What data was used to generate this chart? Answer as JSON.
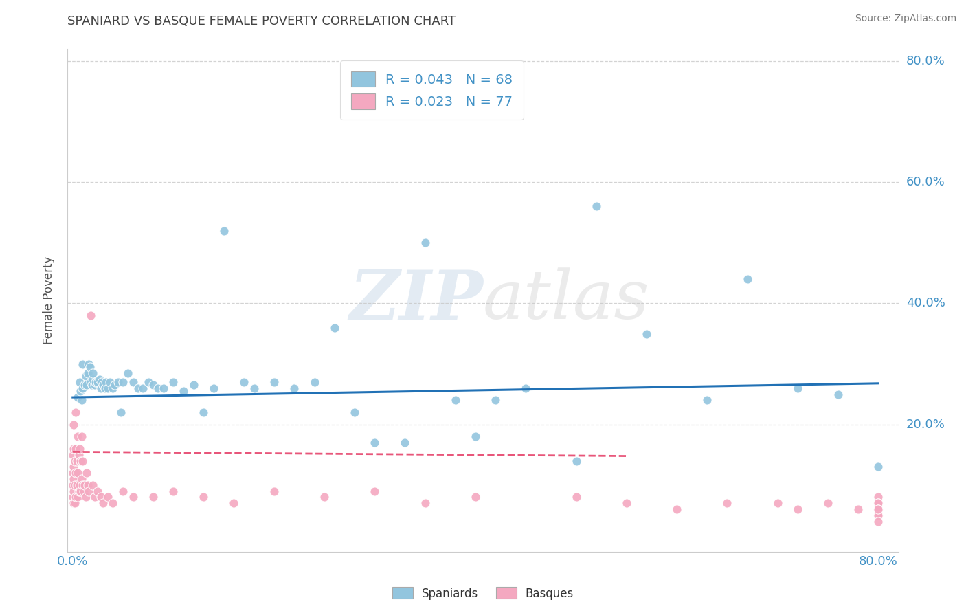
{
  "title": "SPANIARD VS BASQUE FEMALE POVERTY CORRELATION CHART",
  "source": "Source: ZipAtlas.com",
  "ylabel_label": "Female Poverty",
  "legend_label1": "Spaniards",
  "legend_label2": "Basques",
  "r1": "0.043",
  "n1": "68",
  "r2": "0.023",
  "n2": "77",
  "color_blue": "#92c5de",
  "color_pink": "#f4a8c0",
  "trend_blue": "#2171b5",
  "trend_pink": "#e8567a",
  "xlim": [
    -0.005,
    0.82
  ],
  "ylim": [
    -0.01,
    0.82
  ],
  "xticks": [
    0.0,
    0.8
  ],
  "yticks": [
    0.2,
    0.4,
    0.6,
    0.8
  ],
  "xticklabels": [
    "0.0%",
    "80.0%"
  ],
  "yticklabels": [
    "20.0%",
    "40.0%",
    "60.0%",
    "80.0%"
  ],
  "grid_yticks": [
    0.2,
    0.4,
    0.6,
    0.8
  ],
  "blue_x": [
    0.005,
    0.007,
    0.008,
    0.009,
    0.01,
    0.01,
    0.012,
    0.013,
    0.014,
    0.015,
    0.016,
    0.017,
    0.018,
    0.019,
    0.02,
    0.02,
    0.022,
    0.023,
    0.025,
    0.027,
    0.028,
    0.029,
    0.03,
    0.032,
    0.033,
    0.035,
    0.037,
    0.04,
    0.042,
    0.045,
    0.048,
    0.05,
    0.055,
    0.06,
    0.065,
    0.07,
    0.075,
    0.08,
    0.085,
    0.09,
    0.1,
    0.11,
    0.12,
    0.13,
    0.14,
    0.15,
    0.17,
    0.18,
    0.2,
    0.22,
    0.24,
    0.26,
    0.28,
    0.3,
    0.33,
    0.35,
    0.38,
    0.4,
    0.42,
    0.45,
    0.5,
    0.52,
    0.57,
    0.63,
    0.67,
    0.72,
    0.76,
    0.8
  ],
  "blue_y": [
    0.245,
    0.27,
    0.255,
    0.24,
    0.3,
    0.26,
    0.265,
    0.28,
    0.265,
    0.285,
    0.3,
    0.295,
    0.27,
    0.265,
    0.275,
    0.285,
    0.265,
    0.27,
    0.27,
    0.275,
    0.26,
    0.27,
    0.265,
    0.26,
    0.27,
    0.26,
    0.27,
    0.26,
    0.265,
    0.27,
    0.22,
    0.27,
    0.285,
    0.27,
    0.26,
    0.26,
    0.27,
    0.265,
    0.26,
    0.26,
    0.27,
    0.255,
    0.265,
    0.22,
    0.26,
    0.52,
    0.27,
    0.26,
    0.27,
    0.26,
    0.27,
    0.36,
    0.22,
    0.17,
    0.17,
    0.5,
    0.24,
    0.18,
    0.24,
    0.26,
    0.14,
    0.56,
    0.35,
    0.24,
    0.44,
    0.26,
    0.25,
    0.13
  ],
  "pink_x": [
    0.0,
    0.0,
    0.0,
    0.0,
    0.001,
    0.001,
    0.001,
    0.001,
    0.001,
    0.001,
    0.002,
    0.002,
    0.002,
    0.003,
    0.003,
    0.003,
    0.003,
    0.004,
    0.004,
    0.005,
    0.005,
    0.005,
    0.006,
    0.006,
    0.007,
    0.007,
    0.008,
    0.008,
    0.009,
    0.009,
    0.01,
    0.01,
    0.011,
    0.012,
    0.013,
    0.014,
    0.015,
    0.016,
    0.018,
    0.02,
    0.022,
    0.025,
    0.028,
    0.03,
    0.035,
    0.04,
    0.05,
    0.06,
    0.08,
    0.1,
    0.13,
    0.16,
    0.2,
    0.25,
    0.3,
    0.35,
    0.4,
    0.5,
    0.55,
    0.6,
    0.65,
    0.7,
    0.72,
    0.75,
    0.78,
    0.8,
    0.8,
    0.8,
    0.8,
    0.8,
    0.8,
    0.8,
    0.8,
    0.8,
    0.8,
    0.8,
    0.8
  ],
  "pink_y": [
    0.08,
    0.1,
    0.12,
    0.15,
    0.07,
    0.09,
    0.11,
    0.13,
    0.16,
    0.2,
    0.07,
    0.1,
    0.14,
    0.08,
    0.12,
    0.16,
    0.22,
    0.1,
    0.14,
    0.08,
    0.12,
    0.18,
    0.09,
    0.15,
    0.1,
    0.16,
    0.09,
    0.14,
    0.11,
    0.18,
    0.1,
    0.14,
    0.09,
    0.1,
    0.08,
    0.12,
    0.1,
    0.09,
    0.38,
    0.1,
    0.08,
    0.09,
    0.08,
    0.07,
    0.08,
    0.07,
    0.09,
    0.08,
    0.08,
    0.09,
    0.08,
    0.07,
    0.09,
    0.08,
    0.09,
    0.07,
    0.08,
    0.08,
    0.07,
    0.06,
    0.07,
    0.07,
    0.06,
    0.07,
    0.06,
    0.05,
    0.07,
    0.08,
    0.05,
    0.07,
    0.06,
    0.05,
    0.07,
    0.06,
    0.05,
    0.04,
    0.06
  ],
  "blue_trend_x": [
    0.0,
    0.8
  ],
  "blue_trend_y": [
    0.245,
    0.268
  ],
  "pink_trend_x": [
    0.0,
    0.55
  ],
  "pink_trend_y": [
    0.155,
    0.148
  ],
  "bg_color": "#ffffff",
  "grid_color": "#c8c8c8",
  "tick_color": "#4292c6",
  "title_color": "#444444",
  "source_color": "#777777"
}
